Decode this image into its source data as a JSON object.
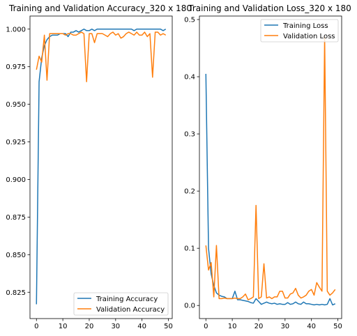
{
  "colors": {
    "training": "#1f77b4",
    "validation": "#ff7f0e"
  },
  "chart_data": [
    {
      "type": "line",
      "title": "Training and Validation Accuracy_320 x 180",
      "xlabel": "",
      "ylabel": "",
      "xlim": [
        -2.45,
        51.45
      ],
      "ylim": [
        0.8075,
        1.0087
      ],
      "xticks": [
        0,
        10,
        20,
        30,
        40,
        50
      ],
      "yticks": [
        0.825,
        0.85,
        0.875,
        0.9,
        0.925,
        0.95,
        0.975,
        1.0
      ],
      "ytick_labels": [
        "0.825",
        "0.850",
        "0.875",
        "0.900",
        "0.925",
        "0.950",
        "0.975",
        "1.000"
      ],
      "legend_position": "lower right",
      "series": [
        {
          "name": "Training Accuracy",
          "values": [
            0.817,
            0.965,
            0.981,
            0.989,
            0.993,
            0.995,
            0.996,
            0.996,
            0.996,
            0.997,
            0.997,
            0.997,
            0.995,
            0.998,
            0.998,
            0.999,
            0.998,
            0.999,
            1.0,
            0.999,
            0.999,
            1.0,
            0.999,
            1.0,
            1.0,
            1.0,
            1.0,
            1.0,
            1.0,
            1.0,
            1.0,
            1.0,
            1.0,
            1.0,
            1.0,
            1.0,
            1.0,
            0.999,
            1.0,
            1.0,
            1.0,
            1.0,
            1.0,
            1.0,
            1.0,
            1.0,
            1.0,
            1.0,
            0.999,
            1.0
          ]
        },
        {
          "name": "Validation Accuracy",
          "values": [
            0.973,
            0.982,
            0.978,
            0.996,
            0.966,
            0.997,
            0.997,
            0.997,
            0.997,
            0.997,
            0.997,
            0.996,
            0.997,
            0.997,
            0.996,
            0.996,
            0.997,
            0.998,
            0.997,
            0.965,
            0.997,
            0.997,
            0.991,
            0.997,
            0.997,
            0.997,
            0.996,
            0.995,
            0.997,
            0.998,
            0.996,
            0.997,
            0.994,
            0.995,
            0.997,
            0.998,
            0.997,
            0.996,
            0.998,
            0.996,
            0.996,
            0.998,
            0.995,
            0.997,
            0.968,
            0.998,
            0.998,
            0.996,
            0.997,
            0.996
          ]
        }
      ]
    },
    {
      "type": "line",
      "title": "Training and Validation Loss_320 x 180",
      "xlabel": "",
      "ylabel": "",
      "xlim": [
        -2.45,
        51.45
      ],
      "ylim": [
        -0.0229,
        0.5061
      ],
      "xticks": [
        0,
        10,
        20,
        30,
        40,
        50
      ],
      "yticks": [
        0.0,
        0.1,
        0.2,
        0.3,
        0.4,
        0.5
      ],
      "ytick_labels": [
        "0.0",
        "0.1",
        "0.2",
        "0.3",
        "0.4",
        "0.5"
      ],
      "legend_position": "upper right",
      "series": [
        {
          "name": "Training Loss",
          "values": [
            0.405,
            0.1,
            0.055,
            0.035,
            0.022,
            0.018,
            0.016,
            0.015,
            0.012,
            0.012,
            0.012,
            0.025,
            0.01,
            0.01,
            0.009,
            0.008,
            0.007,
            0.005,
            0.004,
            0.012,
            0.007,
            0.002,
            0.004,
            0.006,
            0.004,
            0.003,
            0.004,
            0.002,
            0.003,
            0.002,
            0.002,
            0.005,
            0.002,
            0.003,
            0.006,
            0.003,
            0.002,
            0.006,
            0.003,
            0.003,
            0.002,
            0.001,
            0.002,
            0.001,
            0.002,
            0.001,
            0.002,
            0.012,
            0.001,
            0.003
          ]
        },
        {
          "name": "Validation Loss",
          "values": [
            0.105,
            0.062,
            0.075,
            0.015,
            0.105,
            0.012,
            0.012,
            0.013,
            0.012,
            0.012,
            0.012,
            0.013,
            0.012,
            0.012,
            0.015,
            0.02,
            0.01,
            0.012,
            0.015,
            0.175,
            0.012,
            0.015,
            0.073,
            0.013,
            0.015,
            0.012,
            0.015,
            0.015,
            0.025,
            0.025,
            0.013,
            0.013,
            0.02,
            0.022,
            0.03,
            0.018,
            0.013,
            0.015,
            0.018,
            0.025,
            0.028,
            0.018,
            0.04,
            0.032,
            0.025,
            0.47,
            0.025,
            0.018,
            0.022,
            0.028
          ]
        }
      ]
    }
  ]
}
